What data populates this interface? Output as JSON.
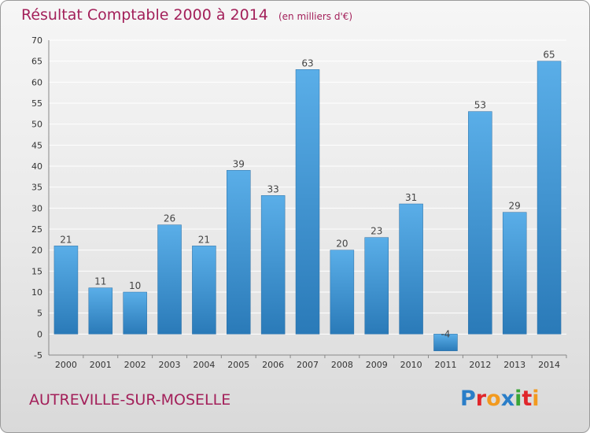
{
  "header": {
    "title": "Résultat Comptable 2000 à 2014",
    "unit": "(en milliers d'€)"
  },
  "footer": {
    "commune": "AUTREVILLE-SUR-MOSELLE",
    "brand_letters": [
      "P",
      "r",
      "o",
      "x",
      "i",
      "t",
      "i"
    ],
    "brand_colors": [
      "#2a7ec8",
      "#e0262b",
      "#f29a1f",
      "#2a7ec8",
      "#3aa537",
      "#e0262b",
      "#f29a1f"
    ]
  },
  "colors": {
    "title": "#a3205a",
    "bar_light": "#5aaee8",
    "bar_dark": "#2a7ab8",
    "grid": "#ffffff"
  },
  "chart_data": {
    "type": "bar",
    "categories": [
      "2000",
      "2001",
      "2002",
      "2003",
      "2004",
      "2005",
      "2006",
      "2007",
      "2008",
      "2009",
      "2010",
      "2011",
      "2012",
      "2013",
      "2014"
    ],
    "values": [
      21,
      11,
      10,
      26,
      21,
      39,
      33,
      63,
      20,
      23,
      31,
      -4,
      53,
      29,
      65
    ],
    "value_labels": [
      "21",
      "11",
      "10",
      "26",
      "21",
      "39",
      "33",
      "63",
      "20",
      "23",
      "31",
      "-4",
      "53",
      "29",
      "65"
    ],
    "ylim": [
      -5,
      70
    ],
    "yticks": [
      -5,
      0,
      5,
      10,
      15,
      20,
      25,
      30,
      35,
      40,
      45,
      50,
      55,
      60,
      65,
      70
    ],
    "grid": true
  }
}
